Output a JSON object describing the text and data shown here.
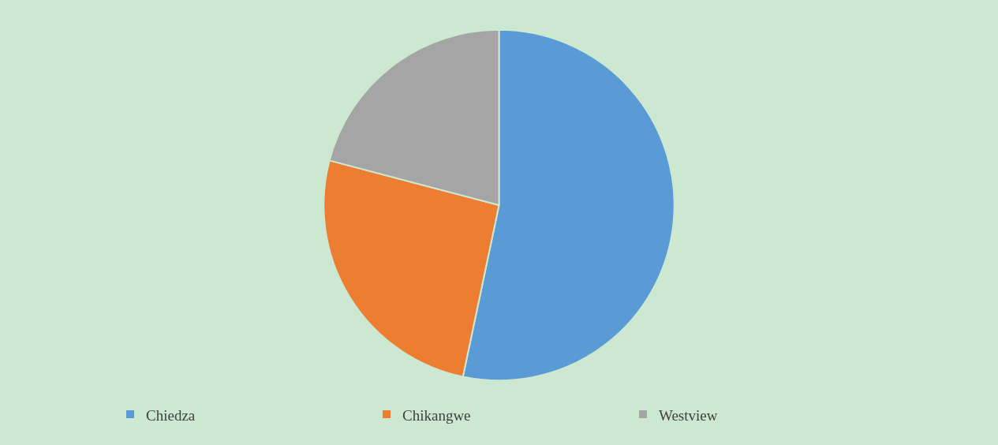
{
  "chart_data": {
    "type": "pie",
    "categories": [
      "Chiedza",
      "Chikangwe",
      "Westview"
    ],
    "values": [
      53.3,
      25.8,
      20.9
    ],
    "colors": [
      "#5b9bd5",
      "#ed7d31",
      "#a5a5a5"
    ],
    "legend": "bottom"
  }
}
